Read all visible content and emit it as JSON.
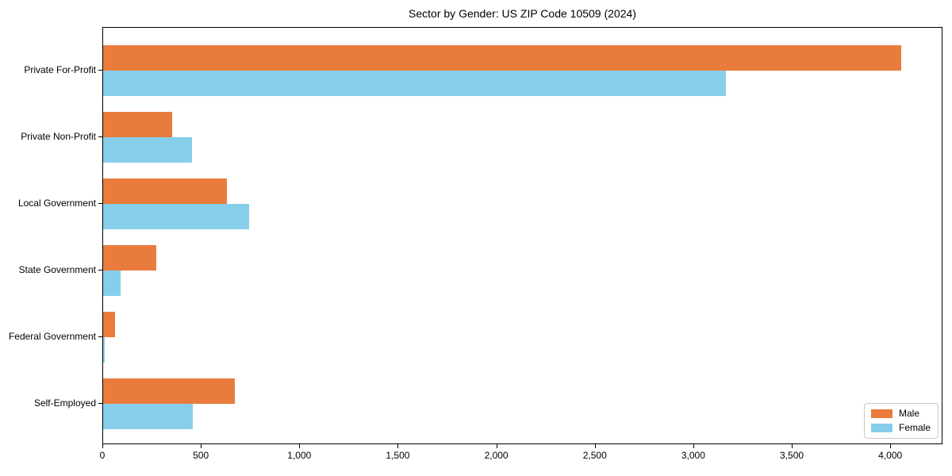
{
  "chart_data": {
    "type": "bar",
    "orientation": "horizontal",
    "title": "Sector by Gender: US ZIP Code 10509 (2024)",
    "categories": [
      "Private For-Profit",
      "Private Non-Profit",
      "Local Government",
      "State Government",
      "Federal Government",
      "Self-Employed"
    ],
    "series": [
      {
        "name": "Male",
        "color": "#e97c3c",
        "values": [
          4050,
          350,
          630,
          270,
          60,
          670
        ]
      },
      {
        "name": "Female",
        "color": "#87ceeb",
        "values": [
          3160,
          450,
          740,
          90,
          10,
          455
        ]
      }
    ],
    "xlabel": "",
    "ylabel": "",
    "xlim": [
      0,
      4265
    ],
    "xticks": {
      "values": [
        0,
        500,
        1000,
        1500,
        2000,
        2500,
        3000,
        3500,
        4000
      ],
      "labels": [
        "0",
        "500",
        "1,000",
        "1,500",
        "2,000",
        "2,500",
        "3,000",
        "3,500",
        "4,000"
      ]
    },
    "grid": false,
    "legend": {
      "position": "lower right",
      "entries": [
        "Male",
        "Female"
      ]
    }
  }
}
